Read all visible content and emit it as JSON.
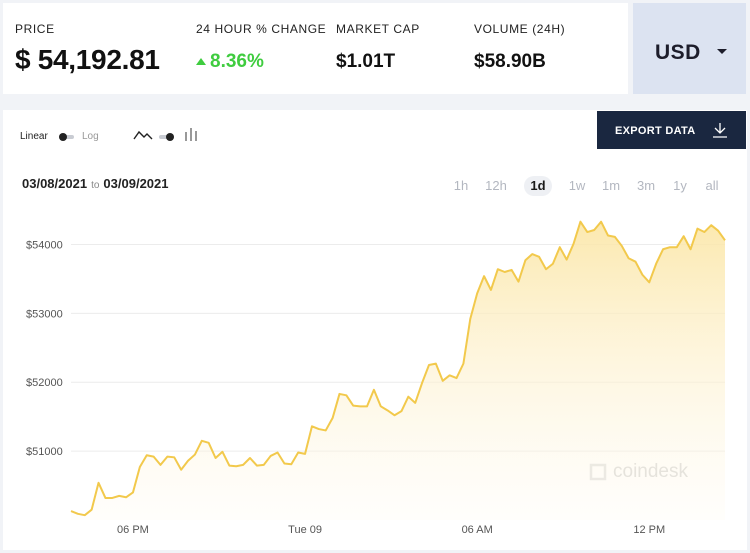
{
  "stats": {
    "price": {
      "label": "PRICE",
      "value": "$ 54,192.81"
    },
    "change": {
      "label": "24 HOUR % CHANGE",
      "value": "8.36%"
    },
    "market_cap": {
      "label": "MARKET CAP",
      "value": "$1.01T"
    },
    "volume": {
      "label": "VOLUME (24H)",
      "value": "$58.90B"
    }
  },
  "currency": {
    "label": "USD"
  },
  "controls": {
    "linear_label": "Linear",
    "log_label": "Log",
    "export_label": "EXPORT DATA"
  },
  "date_range": {
    "from": "03/08/2021",
    "to_word": "to",
    "to": "03/09/2021"
  },
  "ranges": [
    "1h",
    "12h",
    "1d",
    "1w",
    "1m",
    "3m",
    "1y",
    "all"
  ],
  "active_range": "1d",
  "watermark": "coindesk",
  "colors": {
    "line": "#f2c94c",
    "up": "#3fcc3f",
    "button": "#1a2740"
  },
  "chart_data": {
    "type": "area",
    "title": "",
    "xlabel": "",
    "ylabel": "",
    "x_ticks": [
      "06 PM",
      "Tue 09",
      "06 AM",
      "12 PM"
    ],
    "x_tick_index": [
      9,
      34,
      59,
      84
    ],
    "y_ticks": [
      51000,
      52000,
      53000,
      54000
    ],
    "y_tick_labels": [
      "$51000",
      "$52000",
      "$53000",
      "$54000"
    ],
    "ylim": [
      50000,
      54500
    ],
    "grid": true,
    "series": [
      {
        "values": [
          50130,
          50090,
          50070,
          50150,
          50540,
          50320,
          50320,
          50350,
          50330,
          50400,
          50770,
          50940,
          50920,
          50800,
          50920,
          50910,
          50730,
          50860,
          50950,
          51150,
          51120,
          50900,
          50990,
          50790,
          50780,
          50800,
          50900,
          50790,
          50800,
          50930,
          50980,
          50820,
          50810,
          50980,
          50960,
          51360,
          51320,
          51300,
          51480,
          51830,
          51810,
          51660,
          51650,
          51650,
          51890,
          51650,
          51590,
          51520,
          51580,
          51790,
          51700,
          51990,
          52250,
          52270,
          52020,
          52100,
          52060,
          52270,
          52920,
          53290,
          53540,
          53340,
          53640,
          53600,
          53630,
          53460,
          53770,
          53860,
          53820,
          53640,
          53720,
          53960,
          53780,
          54010,
          54330,
          54180,
          54210,
          54330,
          54130,
          54110,
          53980,
          53800,
          53750,
          53560,
          53450,
          53720,
          53930,
          53960,
          53960,
          54120,
          53930,
          54230,
          54180,
          54280,
          54200,
          54060
        ]
      }
    ]
  }
}
